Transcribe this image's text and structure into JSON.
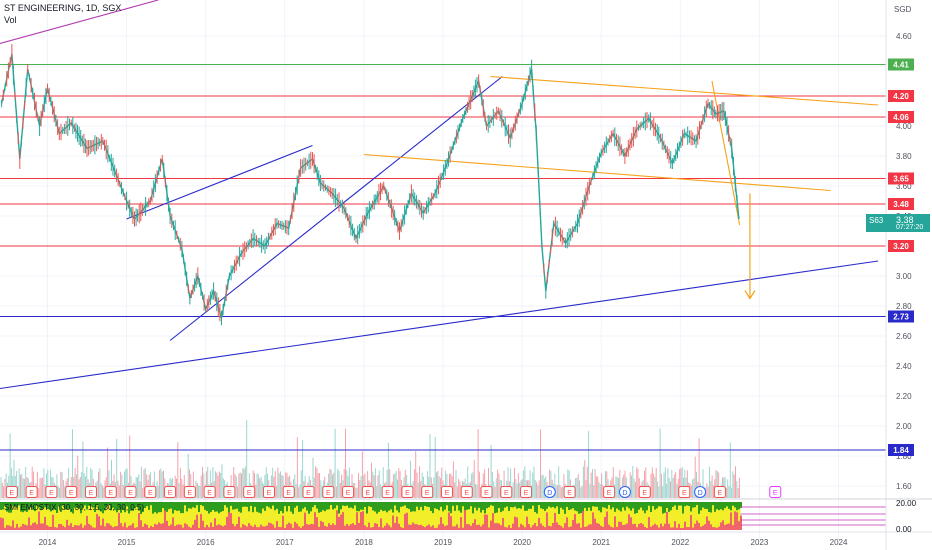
{
  "header": {
    "symbol_line": "ST ENGINEERING, 1D, SGX",
    "volume_label": "Vol",
    "currency": "SGD",
    "indicator_label": "SMI EMOSTIX (30, 30, 1.5, 30, 30, 0.5)"
  },
  "price_tag": {
    "ticker": "S63",
    "price": "3.38",
    "countdown": "07:27:20",
    "color": "#26a69a"
  },
  "indicator_scale": [
    "20.00",
    "0.00"
  ],
  "colors": {
    "resistance_red": "#f23645",
    "support_blue": "#2a2acb",
    "projection_orange": "#f7a21b",
    "guide_green": "#4caf50",
    "channel_purple": "#b03ab0",
    "volume_red": "#f5a3aa",
    "volume_green": "#9dd6cf",
    "indicator_green": "#2e9d1e",
    "indicator_yellow": "#f2ee2a",
    "indicator_red": "#f0656b"
  },
  "chart_data": {
    "type": "line",
    "title": "ST ENGINEERING, 1D, SGX",
    "ylabel": "SGD",
    "y_ticks": [
      1.6,
      1.8,
      2.0,
      2.2,
      2.4,
      2.6,
      2.8,
      3.0,
      3.2,
      3.4,
      3.6,
      3.8,
      4.0,
      4.2,
      4.4,
      4.6
    ],
    "y_tick_labels": [
      "1.60",
      "1.80",
      "2.00",
      "2.20",
      "2.40",
      "2.60",
      "2.80",
      "3.00",
      "3.20",
      "3.40",
      "3.60",
      "3.80",
      "4.00",
      "4.20",
      "4.40",
      "4.60"
    ],
    "x_ticks": [
      "2014",
      "2015",
      "2016",
      "2017",
      "2018",
      "2019",
      "2020",
      "2021",
      "2022",
      "2023",
      "2024"
    ],
    "x_tick_years": [
      2014,
      2015,
      2016,
      2017,
      2018,
      2019,
      2020,
      2021,
      2022,
      2023,
      2024
    ],
    "x_range": [
      2013.4,
      2024.6
    ],
    "ylim": [
      1.48,
      4.84
    ],
    "grid": true,
    "price_series": {
      "name": "",
      "points": [
        [
          2013.42,
          4.15
        ],
        [
          2013.55,
          4.48
        ],
        [
          2013.65,
          3.78
        ],
        [
          2013.75,
          4.38
        ],
        [
          2013.9,
          4.0
        ],
        [
          2014.0,
          4.25
        ],
        [
          2014.15,
          3.95
        ],
        [
          2014.3,
          4.02
        ],
        [
          2014.5,
          3.85
        ],
        [
          2014.7,
          3.9
        ],
        [
          2014.85,
          3.7
        ],
        [
          2015.0,
          3.5
        ],
        [
          2015.1,
          3.38
        ],
        [
          2015.3,
          3.5
        ],
        [
          2015.45,
          3.78
        ],
        [
          2015.55,
          3.4
        ],
        [
          2015.7,
          3.18
        ],
        [
          2015.8,
          2.85
        ],
        [
          2015.9,
          3.0
        ],
        [
          2016.0,
          2.78
        ],
        [
          2016.1,
          2.9
        ],
        [
          2016.2,
          2.72
        ],
        [
          2016.3,
          3.0
        ],
        [
          2016.45,
          3.15
        ],
        [
          2016.6,
          3.25
        ],
        [
          2016.75,
          3.2
        ],
        [
          2016.9,
          3.35
        ],
        [
          2017.05,
          3.32
        ],
        [
          2017.2,
          3.72
        ],
        [
          2017.35,
          3.78
        ],
        [
          2017.45,
          3.62
        ],
        [
          2017.6,
          3.55
        ],
        [
          2017.75,
          3.45
        ],
        [
          2017.9,
          3.25
        ],
        [
          2018.05,
          3.42
        ],
        [
          2018.25,
          3.6
        ],
        [
          2018.45,
          3.3
        ],
        [
          2018.6,
          3.55
        ],
        [
          2018.75,
          3.42
        ],
        [
          2018.9,
          3.55
        ],
        [
          2019.05,
          3.75
        ],
        [
          2019.25,
          4.05
        ],
        [
          2019.45,
          4.3
        ],
        [
          2019.55,
          4.0
        ],
        [
          2019.7,
          4.1
        ],
        [
          2019.85,
          3.92
        ],
        [
          2020.0,
          4.15
        ],
        [
          2020.12,
          4.38
        ],
        [
          2020.18,
          3.95
        ],
        [
          2020.25,
          3.2
        ],
        [
          2020.3,
          2.9
        ],
        [
          2020.4,
          3.35
        ],
        [
          2020.55,
          3.22
        ],
        [
          2020.7,
          3.35
        ],
        [
          2020.85,
          3.6
        ],
        [
          2021.0,
          3.82
        ],
        [
          2021.15,
          3.95
        ],
        [
          2021.3,
          3.8
        ],
        [
          2021.45,
          3.98
        ],
        [
          2021.6,
          4.05
        ],
        [
          2021.75,
          3.92
        ],
        [
          2021.9,
          3.75
        ],
        [
          2022.05,
          3.95
        ],
        [
          2022.2,
          3.9
        ],
        [
          2022.35,
          4.15
        ],
        [
          2022.45,
          4.08
        ],
        [
          2022.55,
          4.1
        ],
        [
          2022.65,
          3.85
        ],
        [
          2022.74,
          3.38
        ]
      ]
    },
    "annotations": {
      "horizontal_levels": [
        {
          "value": 4.41,
          "label": "4.41",
          "color": "#4caf50"
        },
        {
          "value": 4.2,
          "label": "4.20",
          "color": "#f23645"
        },
        {
          "value": 4.06,
          "label": "4.06",
          "color": "#f23645"
        },
        {
          "value": 3.65,
          "label": "3.65",
          "color": "#f23645"
        },
        {
          "value": 3.48,
          "label": "3.48",
          "color": "#f23645"
        },
        {
          "value": 3.2,
          "label": "3.20",
          "color": "#f23645"
        },
        {
          "value": 2.73,
          "label": "2.73",
          "color": "#2a2acb"
        },
        {
          "value": 1.84,
          "label": "1.84",
          "color": "#2a2acb"
        }
      ],
      "trend_lines": [
        {
          "from": [
            2013.4,
            4.55
          ],
          "to": [
            2015.4,
            4.84
          ],
          "color": "#b03ab0"
        },
        {
          "from": [
            2015.0,
            3.38
          ],
          "to": [
            2017.35,
            3.87
          ],
          "color": "#2a2acb"
        },
        {
          "from": [
            2015.55,
            2.57
          ],
          "to": [
            2019.75,
            4.33
          ],
          "color": "#2a2acb"
        },
        {
          "from": [
            2013.4,
            2.25
          ],
          "to": [
            2024.5,
            3.1
          ],
          "color": "#2a2acb"
        },
        {
          "from": [
            2019.6,
            4.33
          ],
          "to": [
            2024.5,
            4.14
          ],
          "color": "#f7a21b"
        },
        {
          "from": [
            2018.0,
            3.81
          ],
          "to": [
            2023.9,
            3.57
          ],
          "color": "#f7a21b"
        },
        {
          "from": [
            2022.4,
            4.3
          ],
          "to": [
            2022.75,
            3.34
          ],
          "color": "#f7a21b"
        }
      ],
      "arrow": {
        "from": [
          2022.88,
          3.55
        ],
        "to": [
          2022.88,
          2.85
        ],
        "color": "#f7a21b"
      }
    },
    "volume_events": [
      {
        "year": 2013.55,
        "label": "E"
      },
      {
        "year": 2013.8,
        "label": "E"
      },
      {
        "year": 2014.05,
        "label": "E"
      },
      {
        "year": 2014.3,
        "label": "E"
      },
      {
        "year": 2014.55,
        "label": "E"
      },
      {
        "year": 2014.8,
        "label": "E"
      },
      {
        "year": 2015.05,
        "label": "E"
      },
      {
        "year": 2015.3,
        "label": "E"
      },
      {
        "year": 2015.55,
        "label": "E"
      },
      {
        "year": 2015.8,
        "label": "E"
      },
      {
        "year": 2016.05,
        "label": "E"
      },
      {
        "year": 2016.3,
        "label": "E"
      },
      {
        "year": 2016.55,
        "label": "E"
      },
      {
        "year": 2016.8,
        "label": "E"
      },
      {
        "year": 2017.05,
        "label": "E"
      },
      {
        "year": 2017.3,
        "label": "E"
      },
      {
        "year": 2017.55,
        "label": "E"
      },
      {
        "year": 2017.8,
        "label": "E"
      },
      {
        "year": 2018.05,
        "label": "E"
      },
      {
        "year": 2018.3,
        "label": "E"
      },
      {
        "year": 2018.55,
        "label": "E"
      },
      {
        "year": 2018.8,
        "label": "E"
      },
      {
        "year": 2019.05,
        "label": "E"
      },
      {
        "year": 2019.3,
        "label": "E"
      },
      {
        "year": 2019.55,
        "label": "E"
      },
      {
        "year": 2019.8,
        "label": "E"
      },
      {
        "year": 2020.05,
        "label": "E"
      },
      {
        "year": 2020.35,
        "label": "D"
      },
      {
        "year": 2020.6,
        "label": "E"
      },
      {
        "year": 2021.1,
        "label": "E"
      },
      {
        "year": 2021.3,
        "label": "D"
      },
      {
        "year": 2021.55,
        "label": "E"
      },
      {
        "year": 2022.05,
        "label": "E"
      },
      {
        "year": 2022.25,
        "label": "D"
      },
      {
        "year": 2022.5,
        "label": "E"
      },
      {
        "year": 2023.2,
        "label": "E"
      }
    ]
  }
}
